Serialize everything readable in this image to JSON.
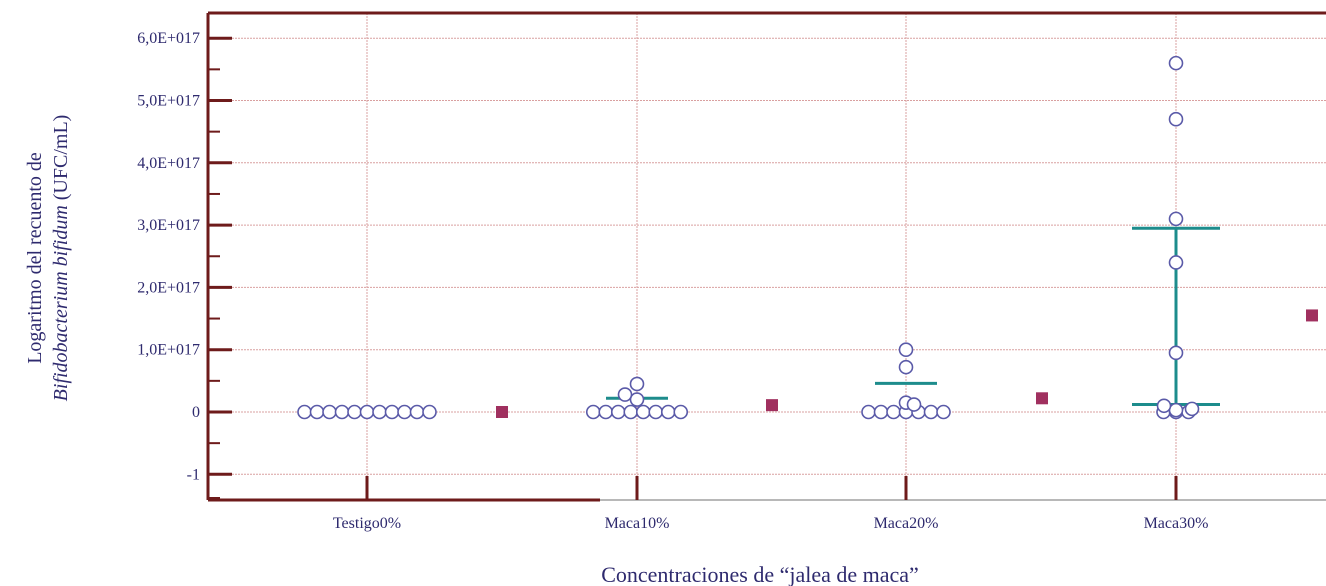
{
  "chart_data": {
    "type": "scatter",
    "xlabel": "Concentraciones de “jalea de maca”",
    "ylabel_line1": "Logaritmo del recuento de",
    "ylabel_line2_italic": "Bifidobacterium bifidum",
    "ylabel_line2_rest": " (UFC/mL)",
    "categories": [
      "Testigo0%",
      "Maca10%",
      "Maca20%",
      "Maca30%"
    ],
    "y_tick_labels": [
      "-1",
      "0",
      "1,0E+017",
      "2,0E+017",
      "3,0E+017",
      "4,0E+017",
      "5,0E+017",
      "6,0E+017"
    ],
    "y_tick_values": [
      -1,
      0,
      1,
      2,
      3,
      4,
      5,
      6
    ],
    "y_unit_note": "values in units of 1E+017 UFC/mL",
    "ylim": [
      -1.4,
      6.4
    ],
    "grid": true,
    "points": [
      {
        "category": "Testigo0%",
        "values": [
          0,
          0,
          0,
          0,
          0,
          0,
          0,
          0,
          0,
          0,
          0
        ]
      },
      {
        "category": "Maca10%",
        "values": [
          0,
          0,
          0,
          0,
          0,
          0,
          0,
          0,
          0.2,
          0.45,
          0.28
        ]
      },
      {
        "category": "Maca20%",
        "values": [
          0,
          0,
          0,
          0,
          0,
          0,
          0,
          0.15,
          0.72,
          1.0,
          0.12
        ]
      },
      {
        "category": "Maca30%",
        "values": [
          0,
          0,
          0,
          0.03,
          0.05,
          0.1,
          0.95,
          2.4,
          3.1,
          4.7,
          5.6
        ]
      }
    ],
    "error_bars": [
      {
        "category": "Maca10%",
        "center": 0.22
      },
      {
        "category": "Maca20%",
        "center": 0.46
      },
      {
        "category": "Maca30%",
        "low": 0.12,
        "high": 2.95
      }
    ],
    "means": [
      {
        "after_category": "Testigo0%",
        "value": 0.0
      },
      {
        "after_category": "Maca10%",
        "value": 0.11
      },
      {
        "after_category": "Maca20%",
        "value": 0.22
      },
      {
        "after_category": "Maca30%",
        "value": 1.55
      }
    ],
    "colors": {
      "frame": "#6e1b1b",
      "grid": "#d9a0a0",
      "points": "#5a5aa8",
      "error_bar": "#1d8c8c",
      "mean": "#a0305f",
      "text": "#2e2a6e"
    }
  }
}
